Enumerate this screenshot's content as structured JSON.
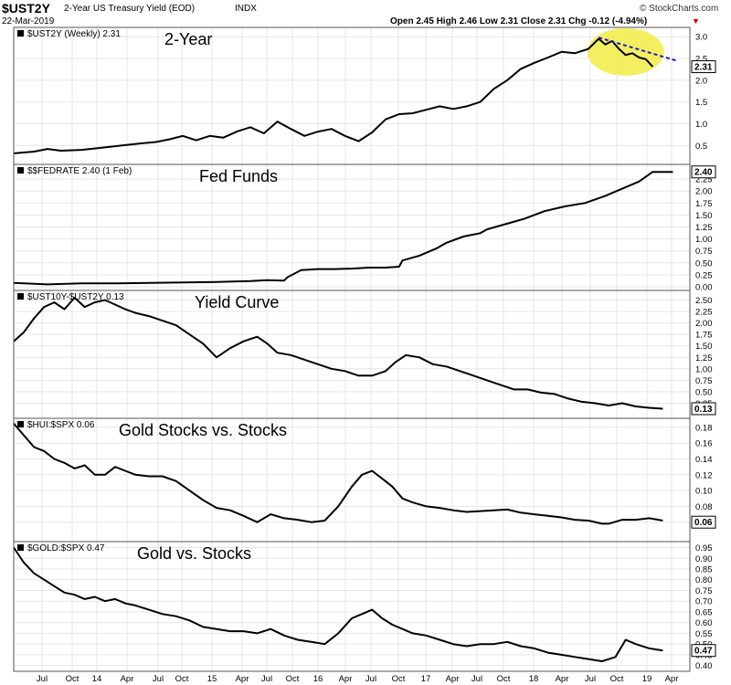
{
  "header": {
    "symbol": "$UST2Y",
    "description": "2-Year US Treasury Yield (EOD)",
    "exchange": "INDX",
    "date": "22-Mar-2019",
    "quote": "Open 2.45  High 2.46  Low 2.31  Close 2.31  Chg -0.12 (-4.94%)",
    "arrow": "▼",
    "brand": "© StockCharts.com"
  },
  "colors": {
    "line": "#000000",
    "grid": "#e6e6e6",
    "frame": "#555555",
    "trend": "#1c1cc8",
    "highlight": "#f2ec45",
    "down_arrow": "#cc0000"
  },
  "chart_data": {
    "type": "line",
    "x_labels": [
      "Jul",
      "Oct",
      "14",
      "Apr",
      "Jul",
      "Oct",
      "15",
      "Apr",
      "Jul",
      "Oct",
      "16",
      "Apr",
      "Jul",
      "Oct",
      "17",
      "Apr",
      "Jul",
      "Oct",
      "18",
      "Apr",
      "Jul",
      "Oct",
      "19",
      "Apr"
    ],
    "x_range": [
      "Jun-2013",
      "Mar-2019"
    ],
    "panels": [
      {
        "legend": "$UST2Y (Weekly) 2.31",
        "title": "2-Year",
        "ylim": [
          0.15,
          3.15
        ],
        "yticks": [
          "3.0",
          "2.5",
          "2.0",
          "1.5",
          "1.0",
          "0.5"
        ],
        "last_value": "2.31",
        "series": [
          [
            0,
            0.32
          ],
          [
            6,
            0.36
          ],
          [
            10,
            0.42
          ],
          [
            14,
            0.38
          ],
          [
            20,
            0.4
          ],
          [
            26,
            0.45
          ],
          [
            32,
            0.5
          ],
          [
            38,
            0.55
          ],
          [
            42,
            0.58
          ],
          [
            46,
            0.64
          ],
          [
            50,
            0.72
          ],
          [
            54,
            0.62
          ],
          [
            58,
            0.72
          ],
          [
            62,
            0.68
          ],
          [
            66,
            0.82
          ],
          [
            70,
            0.92
          ],
          [
            74,
            0.78
          ],
          [
            78,
            1.05
          ],
          [
            82,
            0.88
          ],
          [
            86,
            0.72
          ],
          [
            90,
            0.82
          ],
          [
            94,
            0.88
          ],
          [
            98,
            0.72
          ],
          [
            102,
            0.6
          ],
          [
            106,
            0.8
          ],
          [
            110,
            1.1
          ],
          [
            114,
            1.22
          ],
          [
            118,
            1.24
          ],
          [
            122,
            1.32
          ],
          [
            126,
            1.4
          ],
          [
            130,
            1.34
          ],
          [
            134,
            1.4
          ],
          [
            138,
            1.5
          ],
          [
            142,
            1.8
          ],
          [
            146,
            2.0
          ],
          [
            150,
            2.26
          ],
          [
            154,
            2.4
          ],
          [
            158,
            2.52
          ],
          [
            162,
            2.65
          ],
          [
            166,
            2.62
          ],
          [
            170,
            2.72
          ],
          [
            173,
            2.95
          ],
          [
            175,
            2.82
          ],
          [
            177,
            2.9
          ],
          [
            179,
            2.72
          ],
          [
            181,
            2.58
          ],
          [
            183,
            2.62
          ],
          [
            185,
            2.52
          ],
          [
            187,
            2.48
          ],
          [
            189,
            2.31
          ]
        ],
        "trendline": [
          [
            173,
            2.98
          ],
          [
            196,
            2.45
          ]
        ],
        "highlight_center": [
          181,
          2.65
        ]
      },
      {
        "legend": "$$FEDRATE 2.40 (1 Feb)",
        "title": "Fed Funds",
        "ylim": [
          0.0,
          2.5
        ],
        "yticks": [
          "2.25",
          "2.00",
          "1.75",
          "1.50",
          "1.25",
          "1.00",
          "0.75",
          "0.50",
          "0.25",
          "0.00"
        ],
        "last_value": "2.40",
        "series": [
          [
            0,
            0.08
          ],
          [
            10,
            0.05
          ],
          [
            20,
            0.07
          ],
          [
            30,
            0.07
          ],
          [
            40,
            0.08
          ],
          [
            50,
            0.09
          ],
          [
            60,
            0.1
          ],
          [
            70,
            0.12
          ],
          [
            75,
            0.14
          ],
          [
            80,
            0.13
          ],
          [
            81,
            0.2
          ],
          [
            85,
            0.35
          ],
          [
            90,
            0.37
          ],
          [
            95,
            0.37
          ],
          [
            100,
            0.38
          ],
          [
            105,
            0.4
          ],
          [
            110,
            0.4
          ],
          [
            114,
            0.42
          ],
          [
            115,
            0.55
          ],
          [
            120,
            0.65
          ],
          [
            125,
            0.8
          ],
          [
            128,
            0.92
          ],
          [
            133,
            1.05
          ],
          [
            138,
            1.12
          ],
          [
            140,
            1.2
          ],
          [
            145,
            1.3
          ],
          [
            151,
            1.42
          ],
          [
            157,
            1.58
          ],
          [
            163,
            1.68
          ],
          [
            169,
            1.75
          ],
          [
            175,
            1.9
          ],
          [
            180,
            2.05
          ],
          [
            185,
            2.2
          ],
          [
            189,
            2.4
          ],
          [
            195,
            2.4
          ]
        ]
      },
      {
        "legend": "$UST10Y-$UST2Y 0.13",
        "title": "Yield Curve",
        "ylim": [
          0.0,
          2.65
        ],
        "yticks": [
          "2.50",
          "2.25",
          "2.00",
          "1.75",
          "1.50",
          "1.25",
          "1.00",
          "0.75",
          "0.50",
          "0.25"
        ],
        "last_value": "0.13",
        "series": [
          [
            0,
            1.6
          ],
          [
            3,
            1.8
          ],
          [
            6,
            2.1
          ],
          [
            9,
            2.35
          ],
          [
            12,
            2.45
          ],
          [
            15,
            2.3
          ],
          [
            18,
            2.55
          ],
          [
            21,
            2.35
          ],
          [
            24,
            2.45
          ],
          [
            27,
            2.5
          ],
          [
            30,
            2.4
          ],
          [
            33,
            2.3
          ],
          [
            36,
            2.22
          ],
          [
            40,
            2.15
          ],
          [
            44,
            2.05
          ],
          [
            48,
            1.95
          ],
          [
            52,
            1.75
          ],
          [
            56,
            1.55
          ],
          [
            60,
            1.25
          ],
          [
            64,
            1.45
          ],
          [
            68,
            1.6
          ],
          [
            72,
            1.7
          ],
          [
            75,
            1.55
          ],
          [
            78,
            1.35
          ],
          [
            82,
            1.3
          ],
          [
            86,
            1.2
          ],
          [
            90,
            1.1
          ],
          [
            94,
            1.0
          ],
          [
            98,
            0.95
          ],
          [
            102,
            0.85
          ],
          [
            106,
            0.85
          ],
          [
            110,
            0.95
          ],
          [
            113,
            1.15
          ],
          [
            116,
            1.3
          ],
          [
            120,
            1.25
          ],
          [
            124,
            1.1
          ],
          [
            128,
            1.05
          ],
          [
            132,
            0.95
          ],
          [
            136,
            0.85
          ],
          [
            140,
            0.75
          ],
          [
            144,
            0.65
          ],
          [
            148,
            0.55
          ],
          [
            152,
            0.55
          ],
          [
            156,
            0.48
          ],
          [
            160,
            0.45
          ],
          [
            164,
            0.35
          ],
          [
            168,
            0.28
          ],
          [
            172,
            0.25
          ],
          [
            176,
            0.2
          ],
          [
            180,
            0.25
          ],
          [
            184,
            0.18
          ],
          [
            188,
            0.15
          ],
          [
            192,
            0.13
          ]
        ]
      },
      {
        "legend": "$HUI:$SPX 0.06",
        "title": "Gold Stocks vs. Stocks",
        "ylim": [
          0.04,
          0.188
        ],
        "yticks": [
          "0.18",
          "0.16",
          "0.14",
          "0.12",
          "0.10",
          "0.08",
          "0.06"
        ],
        "last_value": "0.06",
        "series": [
          [
            0,
            0.185
          ],
          [
            3,
            0.17
          ],
          [
            6,
            0.155
          ],
          [
            9,
            0.15
          ],
          [
            12,
            0.14
          ],
          [
            15,
            0.135
          ],
          [
            18,
            0.128
          ],
          [
            21,
            0.132
          ],
          [
            24,
            0.12
          ],
          [
            27,
            0.12
          ],
          [
            30,
            0.13
          ],
          [
            33,
            0.125
          ],
          [
            36,
            0.12
          ],
          [
            40,
            0.118
          ],
          [
            44,
            0.118
          ],
          [
            48,
            0.112
          ],
          [
            52,
            0.1
          ],
          [
            56,
            0.088
          ],
          [
            60,
            0.078
          ],
          [
            64,
            0.075
          ],
          [
            68,
            0.068
          ],
          [
            72,
            0.06
          ],
          [
            76,
            0.07
          ],
          [
            80,
            0.065
          ],
          [
            84,
            0.063
          ],
          [
            88,
            0.06
          ],
          [
            92,
            0.062
          ],
          [
            96,
            0.08
          ],
          [
            100,
            0.105
          ],
          [
            103,
            0.12
          ],
          [
            106,
            0.125
          ],
          [
            109,
            0.115
          ],
          [
            112,
            0.105
          ],
          [
            115,
            0.09
          ],
          [
            118,
            0.085
          ],
          [
            122,
            0.08
          ],
          [
            126,
            0.078
          ],
          [
            130,
            0.075
          ],
          [
            134,
            0.073
          ],
          [
            138,
            0.074
          ],
          [
            142,
            0.075
          ],
          [
            146,
            0.076
          ],
          [
            150,
            0.072
          ],
          [
            154,
            0.07
          ],
          [
            158,
            0.068
          ],
          [
            162,
            0.066
          ],
          [
            166,
            0.063
          ],
          [
            170,
            0.062
          ],
          [
            174,
            0.058
          ],
          [
            176,
            0.058
          ],
          [
            180,
            0.063
          ],
          [
            184,
            0.063
          ],
          [
            188,
            0.065
          ],
          [
            192,
            0.062
          ]
        ]
      },
      {
        "legend": "$GOLD:$SPX 0.47",
        "title": "Gold vs. Stocks",
        "ylim": [
          0.39,
          0.965
        ],
        "yticks": [
          "0.95",
          "0.90",
          "0.85",
          "0.80",
          "0.75",
          "0.70",
          "0.65",
          "0.60",
          "0.55",
          "0.50",
          "0.45",
          "0.40"
        ],
        "last_value": "0.47",
        "series": [
          [
            0,
            0.95
          ],
          [
            3,
            0.88
          ],
          [
            6,
            0.83
          ],
          [
            9,
            0.8
          ],
          [
            12,
            0.77
          ],
          [
            15,
            0.74
          ],
          [
            18,
            0.73
          ],
          [
            21,
            0.71
          ],
          [
            24,
            0.72
          ],
          [
            27,
            0.7
          ],
          [
            30,
            0.71
          ],
          [
            33,
            0.69
          ],
          [
            36,
            0.68
          ],
          [
            40,
            0.66
          ],
          [
            44,
            0.64
          ],
          [
            48,
            0.63
          ],
          [
            52,
            0.61
          ],
          [
            56,
            0.58
          ],
          [
            60,
            0.57
          ],
          [
            64,
            0.56
          ],
          [
            68,
            0.56
          ],
          [
            72,
            0.55
          ],
          [
            76,
            0.57
          ],
          [
            80,
            0.54
          ],
          [
            84,
            0.52
          ],
          [
            88,
            0.51
          ],
          [
            92,
            0.5
          ],
          [
            96,
            0.55
          ],
          [
            100,
            0.62
          ],
          [
            103,
            0.64
          ],
          [
            106,
            0.66
          ],
          [
            109,
            0.62
          ],
          [
            112,
            0.59
          ],
          [
            115,
            0.57
          ],
          [
            118,
            0.55
          ],
          [
            122,
            0.54
          ],
          [
            126,
            0.52
          ],
          [
            130,
            0.5
          ],
          [
            134,
            0.49
          ],
          [
            138,
            0.5
          ],
          [
            142,
            0.5
          ],
          [
            146,
            0.51
          ],
          [
            150,
            0.49
          ],
          [
            154,
            0.48
          ],
          [
            158,
            0.46
          ],
          [
            162,
            0.45
          ],
          [
            166,
            0.44
          ],
          [
            170,
            0.43
          ],
          [
            174,
            0.42
          ],
          [
            178,
            0.44
          ],
          [
            181,
            0.52
          ],
          [
            184,
            0.5
          ],
          [
            188,
            0.48
          ],
          [
            192,
            0.47
          ]
        ]
      }
    ]
  }
}
